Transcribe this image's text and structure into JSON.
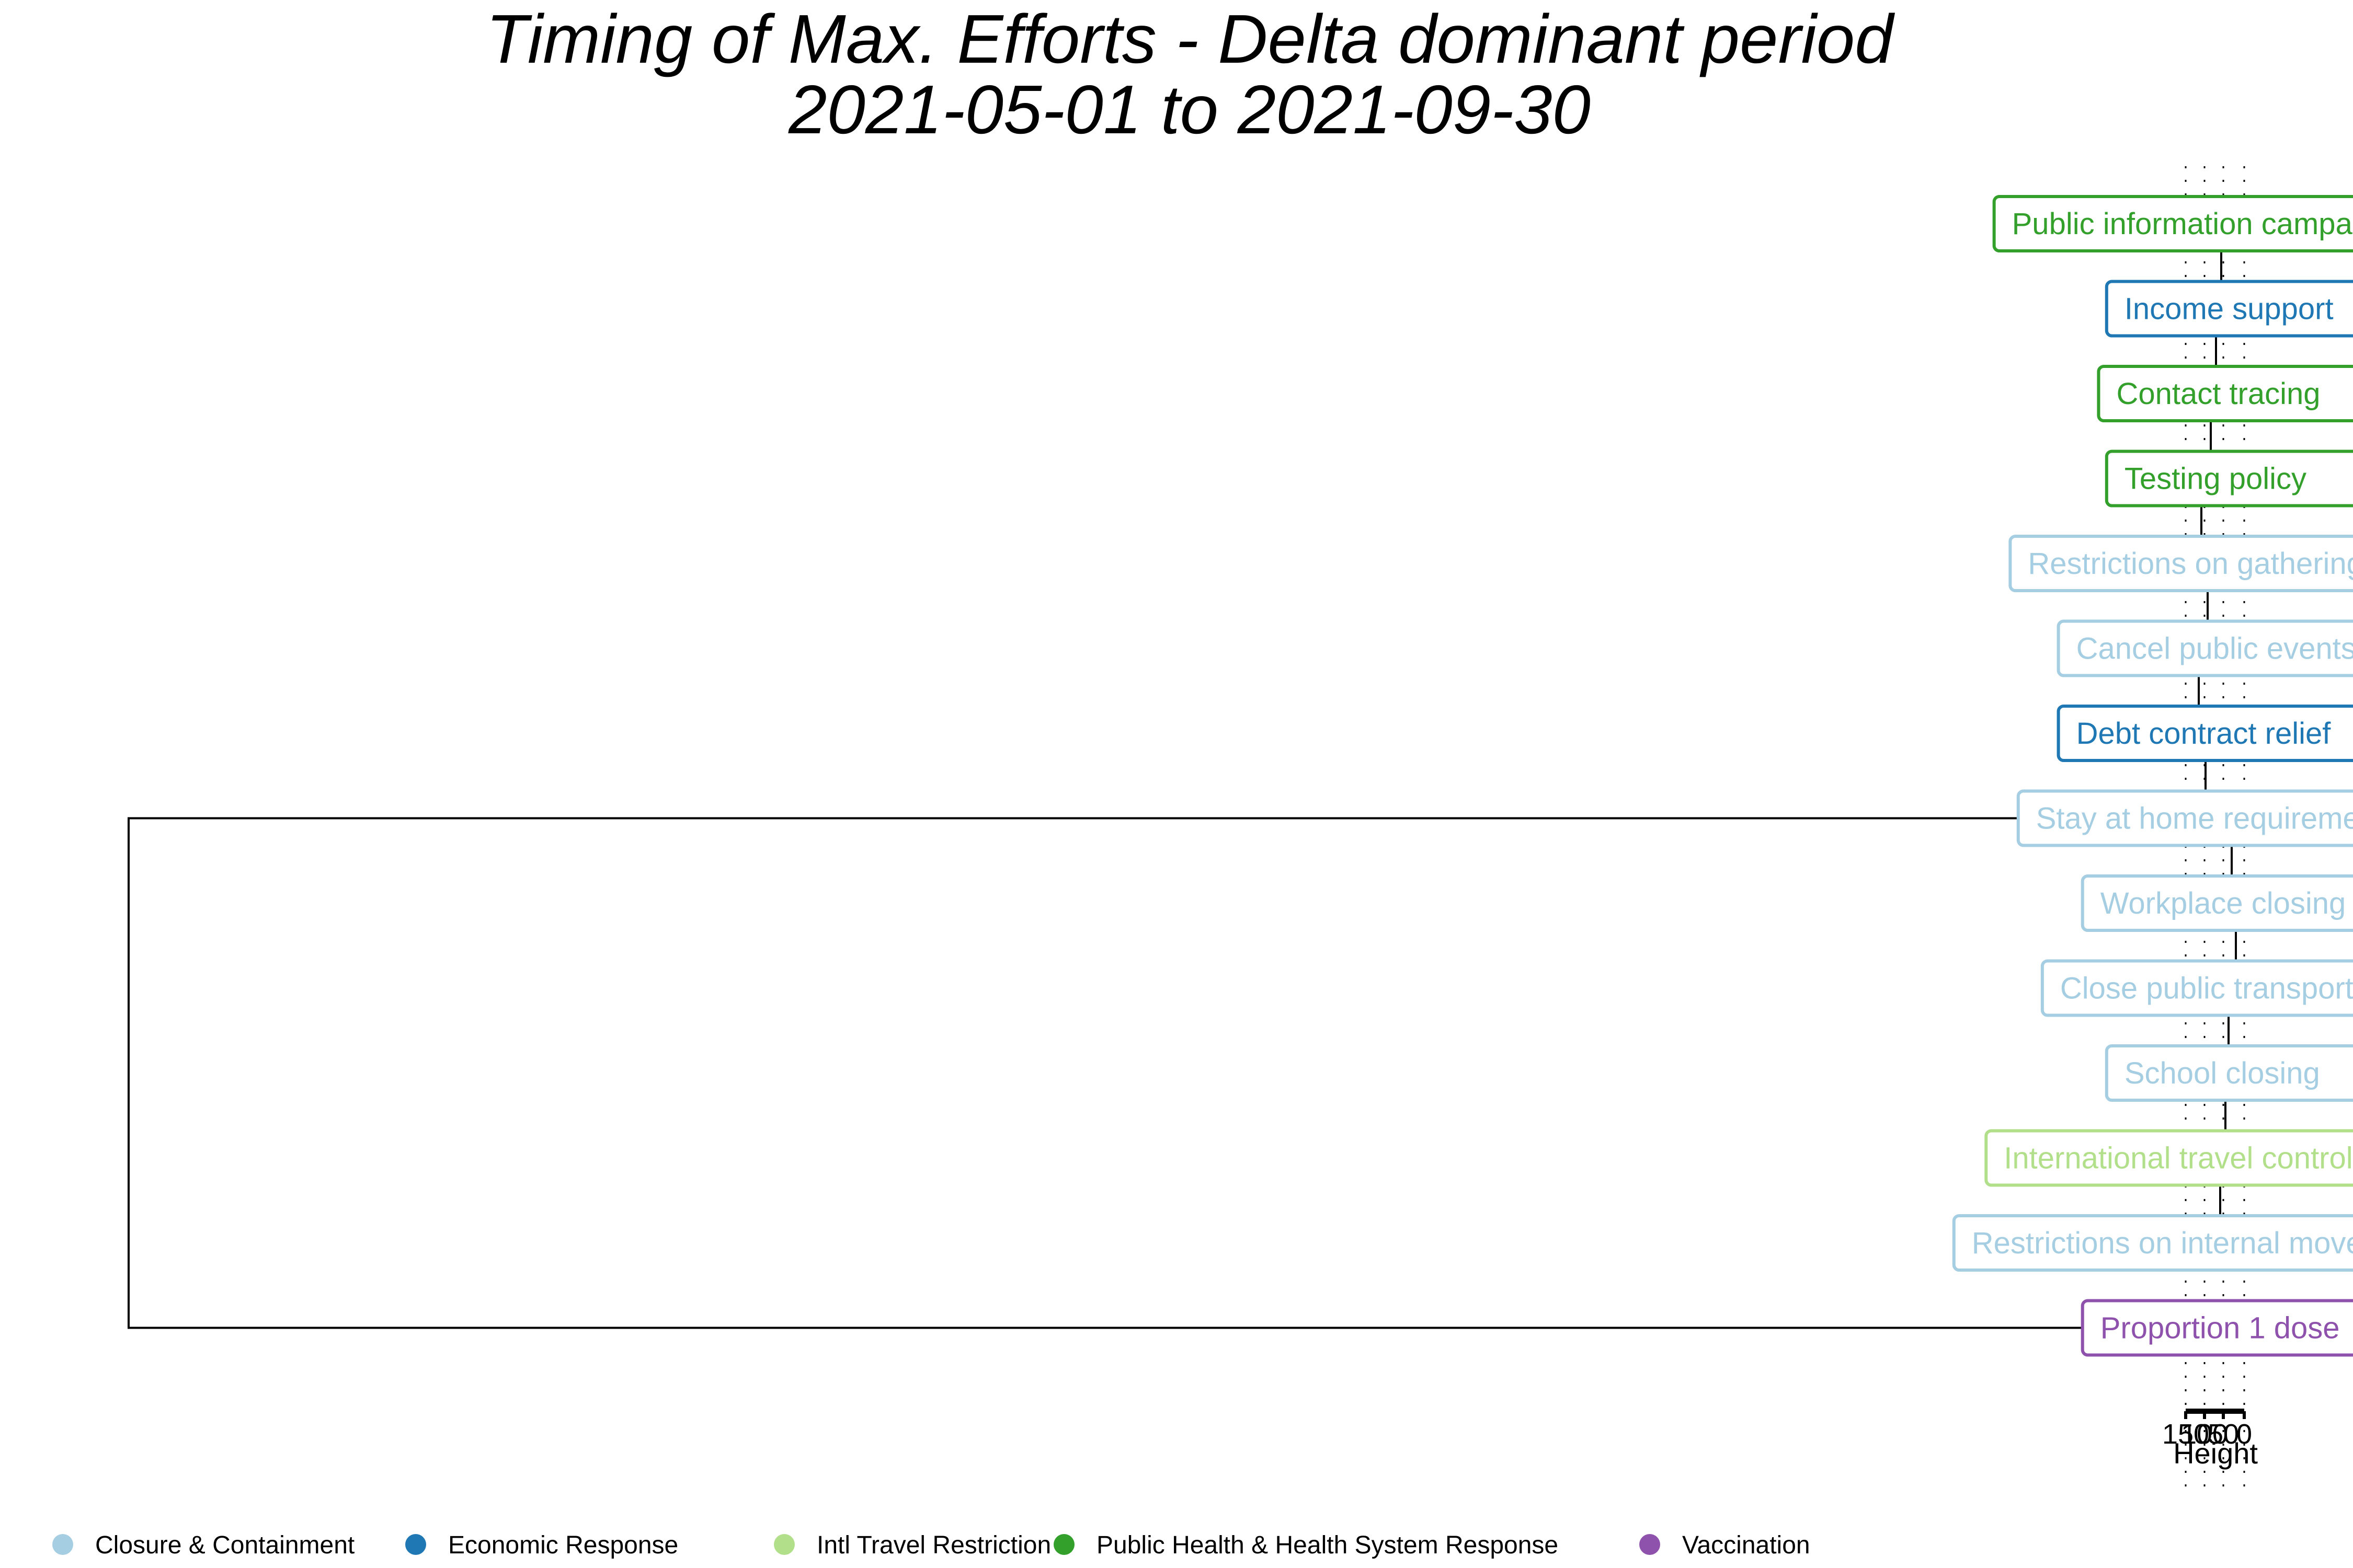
{
  "chart_data": {
    "type": "dendrogram",
    "title": "Timing of Max. Efforts - Delta dominant period",
    "subtitle": "2021-05-01 to 2021-09-30",
    "axis": {
      "title": "Height",
      "tick_labels": [
        "150",
        "100",
        "50",
        "0"
      ]
    },
    "leaves": [
      {
        "label": "Public information campaigns",
        "group": "Public Health & Health System Response"
      },
      {
        "label": "Income support",
        "group": "Economic Response"
      },
      {
        "label": "Contact tracing",
        "group": "Public Health & Health System Response"
      },
      {
        "label": "Testing policy",
        "group": "Public Health & Health System Response"
      },
      {
        "label": "Restrictions on gatherings",
        "group": "Closure & Containment"
      },
      {
        "label": "Cancel public events",
        "group": "Closure & Containment"
      },
      {
        "label": "Debt contract relief",
        "group": "Economic Response"
      },
      {
        "label": "Stay at home requirements",
        "group": "Closure & Containment"
      },
      {
        "label": "Workplace closing",
        "group": "Closure & Containment"
      },
      {
        "label": "Close public transport",
        "group": "Closure & Containment"
      },
      {
        "label": "School closing",
        "group": "Closure & Containment"
      },
      {
        "label": "International travel controls",
        "group": "Intl Travel Restriction"
      },
      {
        "label": "Restrictions on internal movement",
        "group": "Closure & Containment"
      },
      {
        "label": "Proportion 1 dose",
        "group": "Vaccination"
      }
    ],
    "legend": {
      "position": "bottom",
      "items": [
        {
          "name": "Closure & Containment",
          "color": "#a6cee3"
        },
        {
          "name": "Economic Response",
          "color": "#1f78b4"
        },
        {
          "name": "Intl Travel Restriction",
          "color": "#b2df8a"
        },
        {
          "name": "Public Health & Health System Response",
          "color": "#33a02c"
        },
        {
          "name": "Vaccination",
          "color": "#8e52ad"
        }
      ]
    }
  }
}
